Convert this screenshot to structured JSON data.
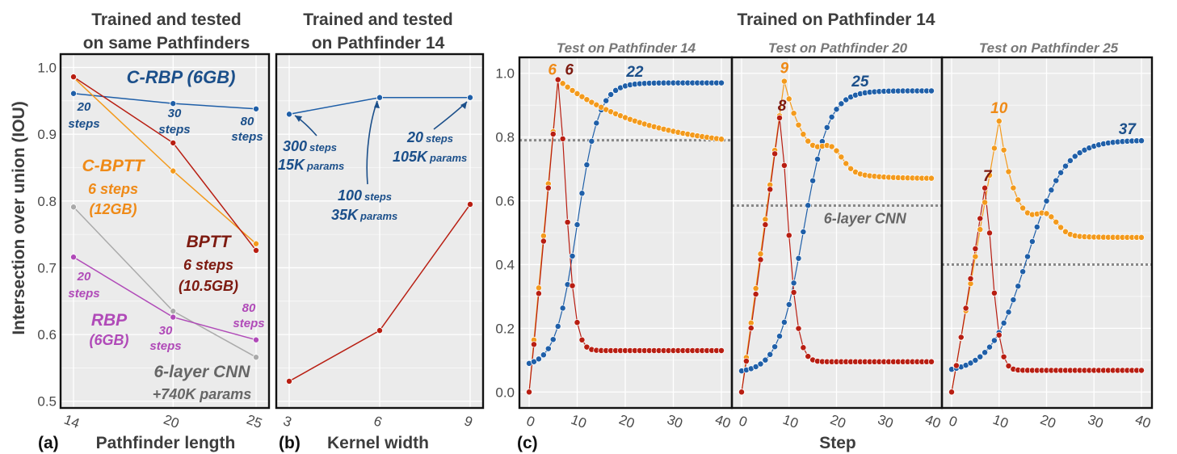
{
  "colors": {
    "blue": "#1f5fa8",
    "blue_text": "#1b4f8a",
    "orange": "#f39a1c",
    "orange_text": "#ef8a17",
    "red": "#b81e12",
    "red_text": "#7d1a10",
    "gray": "#aaaaaa",
    "gray_text": "#666666",
    "purple": "#b04ab8",
    "purple_text": "#b04ab8",
    "panel_bg": "#ebebeb",
    "grid": "#ffffff",
    "baseline": "#888888"
  },
  "ylabel": "Intersection over union (IOU)",
  "xlabel_c": "Step",
  "chart_data": [
    {
      "panel": "(a)",
      "type": "line",
      "title": "Trained and tested\non same Pathfinders",
      "xlabel": "Pathfinder length",
      "x": [
        14,
        20,
        25
      ],
      "ylim": [
        0.49,
        1.02
      ],
      "yticks": [
        "0.5",
        "0.6",
        "0.7",
        "0.8",
        "0.9",
        "1.0"
      ],
      "grid": true,
      "series": [
        {
          "name": "C-RBP (6GB)",
          "color_key": "blue",
          "values": [
            0.961,
            0.946,
            0.938
          ]
        },
        {
          "name": "C-BPTT 6 steps (12GB)",
          "color_key": "orange",
          "values": [
            0.985,
            0.845,
            0.736
          ]
        },
        {
          "name": "BPTT 6 steps (10.5GB)",
          "color_key": "red",
          "values": [
            0.986,
            0.887,
            0.726
          ]
        },
        {
          "name": "6-layer CNN +740K params",
          "color_key": "gray",
          "values": [
            0.791,
            0.635,
            0.566
          ]
        },
        {
          "name": "RBP (6GB)",
          "color_key": "purple",
          "values": [
            0.716,
            0.626,
            0.592
          ]
        }
      ]
    },
    {
      "panel": "(b)",
      "type": "line",
      "title": "Trained and tested\non Pathfinder 14",
      "xlabel": "Kernel width",
      "x": [
        3,
        6,
        9
      ],
      "ylim": [
        0.49,
        1.02
      ],
      "grid": true,
      "series": [
        {
          "color_key": "blue",
          "values": [
            0.93,
            0.955,
            0.955
          ]
        },
        {
          "color_key": "red",
          "values": [
            0.53,
            0.606,
            0.795
          ]
        }
      ]
    },
    {
      "panel": "(c)",
      "type": "line",
      "title": "Trained on Pathfinder 14",
      "xlabel": "Step",
      "ylim": [
        -0.05,
        1.05
      ],
      "yticks": [
        "0.0",
        "0.2",
        "0.4",
        "0.6",
        "0.8",
        "1.0"
      ],
      "xticks": [
        "0",
        "10",
        "20",
        "30",
        "40"
      ],
      "grid": true,
      "subplots": [
        {
          "subtitle": "Test on Pathfinder 14",
          "baseline": 0.79,
          "blue": {
            "start": 0.08,
            "peak": 0.97,
            "plateau": 0.965,
            "mid": 10,
            "k": 0.45,
            "label": "22",
            "label_step": 22
          },
          "orange": {
            "peak_step": 6,
            "peak": 0.98,
            "end": 0.76,
            "tau": 18,
            "label": "6"
          },
          "red": {
            "peak_step": 6,
            "peak": 0.98,
            "end": 0.13,
            "tau": 2.4,
            "label": "6"
          }
        },
        {
          "subtitle": "Test on Pathfinder 20",
          "baseline": 0.585,
          "baseline_label": "6-layer CNN",
          "blue": {
            "start": 0.06,
            "peak": 0.945,
            "plateau": 0.94,
            "mid": 13,
            "k": 0.38,
            "label": "25",
            "label_step": 25
          },
          "orange": {
            "peak_step": 9,
            "peak": 0.975,
            "end": 0.67,
            "tau": 5,
            "bump_step": 19,
            "bump": 0.77,
            "label": "9"
          },
          "red": {
            "peak_step": 8,
            "peak": 0.86,
            "end": 0.095,
            "tau": 2.6,
            "label": "8"
          }
        },
        {
          "subtitle": "Test on Pathfinder 25",
          "baseline": 0.4,
          "blue": {
            "start": 0.06,
            "peak": 0.79,
            "plateau": 0.79,
            "mid": 16,
            "k": 0.26,
            "label": "37",
            "label_step": 37
          },
          "orange": {
            "peak_step": 10,
            "peak": 0.85,
            "end": 0.485,
            "tau": 3.5,
            "bump_step": 20,
            "bump": 0.56,
            "label": "10"
          },
          "red": {
            "peak_step": 7,
            "peak": 0.64,
            "end": 0.068,
            "tau": 2.2,
            "label": "7"
          }
        }
      ]
    }
  ],
  "annotations_a": {
    "crbp": "C-RBP (6GB)",
    "steps20": "20",
    "steps20b": "steps",
    "steps30": "30",
    "steps30b": "steps",
    "steps80": "80",
    "steps80b": "steps",
    "cbptt1": "C-BPTT",
    "cbptt2": "6 steps",
    "cbptt3": "(12GB)",
    "bptt1": "BPTT",
    "bptt2": "6 steps",
    "bptt3": "(10.5GB)",
    "rbp1": "RBP",
    "rbp2": "(6GB)",
    "rsteps20": "20",
    "rsteps20b": "steps",
    "rsteps30": "30",
    "rsteps30b": "steps",
    "rsteps80": "80",
    "rsteps80b": "steps",
    "cnn1": "6-layer CNN",
    "cnn2": "+740K params"
  },
  "annotations_b": {
    "a1_steps": "300",
    "a1_word": "steps",
    "a1_params": "15K",
    "a1_pword": "params",
    "a2_steps": "100",
    "a2_word": "steps",
    "a2_params": "35K",
    "a2_pword": "params",
    "a3_steps": "20",
    "a3_word": "steps",
    "a3_params": "105K",
    "a3_pword": "params"
  },
  "panel_letters": [
    "(a)",
    "(b)",
    "(c)"
  ]
}
